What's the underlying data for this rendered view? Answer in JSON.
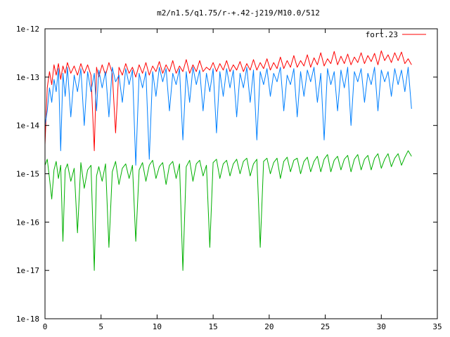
{
  "chart_data": {
    "type": "line",
    "title": "m2/n1.5/q1.75/r-+.42-j219/M10.0/512",
    "xlabel": "",
    "ylabel": "",
    "xlim": [
      0,
      35
    ],
    "ylim": [
      1e-18,
      1e-12
    ],
    "y_scale": "log",
    "grid": false,
    "legend_position": "top-right",
    "x_ticks": [
      0,
      5,
      10,
      15,
      20,
      25,
      30,
      35
    ],
    "x_tick_labels": [
      "0",
      "5",
      "10",
      "15",
      "20",
      "25",
      "30",
      "35"
    ],
    "y_ticks": [
      1e-18,
      1e-17,
      1e-16,
      1e-15,
      1e-14,
      1e-13,
      1e-12
    ],
    "y_tick_labels": [
      "1e-18",
      "1e-17",
      "1e-16",
      "1e-15",
      "1e-14",
      "1e-13",
      "1e-12"
    ],
    "series": [
      {
        "name": "fort.23",
        "color": "#ff0000",
        "x": [
          0.0,
          0.2,
          0.4,
          0.6,
          0.8,
          1.0,
          1.2,
          1.4,
          1.6,
          1.8,
          2.0,
          2.3,
          2.6,
          2.9,
          3.2,
          3.5,
          3.8,
          4.1,
          4.4,
          4.6,
          4.8,
          5.1,
          5.4,
          5.7,
          6.0,
          6.3,
          6.6,
          6.9,
          7.2,
          7.5,
          7.8,
          8.1,
          8.4,
          8.7,
          9.0,
          9.3,
          9.6,
          9.9,
          10.2,
          10.5,
          10.8,
          11.1,
          11.4,
          11.7,
          12.0,
          12.3,
          12.6,
          12.9,
          13.2,
          13.5,
          13.8,
          14.1,
          14.4,
          14.7,
          15.0,
          15.3,
          15.6,
          15.9,
          16.2,
          16.5,
          16.8,
          17.1,
          17.4,
          17.7,
          18.0,
          18.3,
          18.6,
          18.9,
          19.2,
          19.5,
          19.8,
          20.1,
          20.4,
          20.7,
          21.0,
          21.3,
          21.6,
          21.9,
          22.2,
          22.5,
          22.8,
          23.1,
          23.4,
          23.7,
          24.0,
          24.3,
          24.6,
          24.9,
          25.2,
          25.5,
          25.8,
          26.1,
          26.4,
          26.7,
          27.0,
          27.3,
          27.6,
          27.9,
          28.2,
          28.5,
          28.8,
          29.1,
          29.4,
          29.7,
          30.0,
          30.3,
          30.6,
          30.9,
          31.2,
          31.5,
          31.8,
          32.1,
          32.4,
          32.7
        ],
        "values": [
          4e-15,
          6e-14,
          1.3e-13,
          7e-14,
          1.8e-13,
          1.1e-13,
          1.9e-13,
          9e-14,
          1.7e-13,
          1.2e-13,
          2e-13,
          1.2e-13,
          1.7e-13,
          1.1e-13,
          1.9e-13,
          1.2e-13,
          1.8e-13,
          1.1e-13,
          3e-15,
          1.6e-13,
          1e-13,
          1.8e-13,
          1.1e-13,
          2e-13,
          1.2e-13,
          7e-15,
          1.6e-13,
          1.1e-13,
          1.9e-13,
          1.2e-13,
          1.6e-13,
          1e-13,
          1.8e-13,
          1.2e-13,
          2e-13,
          1.1e-13,
          1.7e-13,
          1.3e-13,
          2.1e-13,
          1.2e-13,
          1.8e-13,
          1.3e-13,
          2.2e-13,
          1.2e-13,
          1.7e-13,
          1.3e-13,
          2.3e-13,
          1.2e-13,
          1.8e-13,
          1.3e-13,
          2.2e-13,
          1.3e-13,
          1.6e-13,
          1.4e-13,
          2e-13,
          1.3e-13,
          1.9e-13,
          1.4e-13,
          2.2e-13,
          1.3e-13,
          1.8e-13,
          1.4e-13,
          2.1e-13,
          1.3e-13,
          1.9e-13,
          1.4e-13,
          2.3e-13,
          1.4e-13,
          2e-13,
          1.5e-13,
          2.4e-13,
          1.4e-13,
          2e-13,
          1.5e-13,
          2.6e-13,
          1.5e-13,
          2.2e-13,
          1.6e-13,
          2.8e-13,
          1.6e-13,
          2.2e-13,
          1.7e-13,
          2.9e-13,
          1.6e-13,
          2.5e-13,
          1.8e-13,
          3.2e-13,
          1.7e-13,
          2.4e-13,
          1.9e-13,
          3.4e-13,
          1.8e-13,
          2.7e-13,
          1.9e-13,
          3e-13,
          1.8e-13,
          2.6e-13,
          2e-13,
          3.2e-13,
          1.9e-13,
          2.8e-13,
          2.1e-13,
          3.1e-13,
          1.8e-13,
          3.5e-13,
          2.2e-13,
          2.9e-13,
          2e-13,
          3.2e-13,
          2.2e-13,
          3.3e-13,
          1.9e-13,
          2.4e-13,
          1.8e-13
        ]
      },
      {
        "color": "#0080ff",
        "x": [
          0.0,
          0.2,
          0.4,
          0.6,
          0.8,
          1.0,
          1.2,
          1.4,
          1.6,
          1.8,
          2.0,
          2.3,
          2.6,
          2.9,
          3.2,
          3.5,
          3.8,
          4.1,
          4.4,
          4.6,
          4.8,
          5.1,
          5.4,
          5.7,
          6.0,
          6.3,
          6.6,
          6.9,
          7.2,
          7.5,
          7.8,
          8.1,
          8.4,
          8.7,
          9.0,
          9.3,
          9.6,
          9.9,
          10.2,
          10.5,
          10.8,
          11.1,
          11.4,
          11.7,
          12.0,
          12.3,
          12.6,
          12.9,
          13.2,
          13.5,
          13.8,
          14.1,
          14.4,
          14.7,
          15.0,
          15.3,
          15.6,
          15.9,
          16.2,
          16.5,
          16.8,
          17.1,
          17.4,
          17.7,
          18.0,
          18.3,
          18.6,
          18.9,
          19.2,
          19.5,
          19.8,
          20.1,
          20.4,
          20.7,
          21.0,
          21.3,
          21.6,
          21.9,
          22.2,
          22.5,
          22.8,
          23.1,
          23.4,
          23.7,
          24.0,
          24.3,
          24.6,
          24.9,
          25.2,
          25.5,
          25.8,
          26.1,
          26.4,
          26.7,
          27.0,
          27.3,
          27.6,
          27.9,
          28.2,
          28.5,
          28.8,
          29.1,
          29.4,
          29.7,
          30.0,
          30.3,
          30.6,
          30.9,
          31.2,
          31.5,
          31.8,
          32.1,
          32.4,
          32.7
        ],
        "values": [
          1e-14,
          2e-14,
          6e-14,
          3e-14,
          9e-14,
          5e-14,
          1.5e-13,
          3e-15,
          1.2e-13,
          4e-14,
          1.6e-13,
          1.5e-14,
          1.1e-13,
          5e-14,
          1.5e-13,
          1e-14,
          1.3e-13,
          5e-14,
          1.2e-13,
          2e-14,
          1.4e-13,
          6e-14,
          1.3e-13,
          1.5e-14,
          1.6e-13,
          8e-14,
          1.1e-13,
          3e-14,
          1.5e-13,
          7e-14,
          1.4e-13,
          1.5e-15,
          1.2e-13,
          6e-14,
          1.3e-13,
          2e-15,
          1.3e-13,
          4e-14,
          1.6e-13,
          8e-14,
          1.5e-13,
          2e-14,
          1.2e-13,
          7e-14,
          1.5e-13,
          5e-15,
          1.3e-13,
          3e-14,
          1.6e-13,
          7e-14,
          1.4e-13,
          2e-14,
          1.2e-13,
          5e-14,
          1.5e-13,
          7e-15,
          1.3e-13,
          4e-14,
          1.5e-13,
          6e-14,
          1.4e-13,
          1.5e-14,
          1.2e-13,
          6e-14,
          1.6e-13,
          3e-14,
          1.4e-13,
          5e-15,
          1.3e-13,
          7e-14,
          1.5e-13,
          4e-14,
          1.2e-13,
          8e-14,
          1.6e-13,
          2e-14,
          1.1e-13,
          7e-14,
          1.5e-13,
          1.5e-14,
          1.3e-13,
          4e-14,
          1.4e-13,
          8e-14,
          1.6e-13,
          3e-14,
          1.2e-13,
          5e-15,
          1.5e-13,
          7e-14,
          1.3e-13,
          2e-14,
          1.4e-13,
          6e-14,
          1.6e-13,
          1e-14,
          1.3e-13,
          8e-14,
          1.5e-13,
          3e-14,
          1.2e-13,
          7e-14,
          1.6e-13,
          2e-14,
          1.4e-13,
          8e-14,
          1.3e-13,
          4e-14,
          1.5e-13,
          7e-14,
          1.4e-13,
          5e-14,
          1.6e-13,
          2.2e-14
        ]
      },
      {
        "color": "#00b000",
        "x": [
          0.0,
          0.2,
          0.4,
          0.6,
          0.8,
          1.0,
          1.2,
          1.4,
          1.6,
          1.8,
          2.0,
          2.3,
          2.6,
          2.9,
          3.2,
          3.5,
          3.8,
          4.1,
          4.4,
          4.6,
          4.8,
          5.1,
          5.4,
          5.7,
          6.0,
          6.3,
          6.6,
          6.9,
          7.2,
          7.5,
          7.8,
          8.1,
          8.4,
          8.7,
          9.0,
          9.3,
          9.6,
          9.9,
          10.2,
          10.5,
          10.8,
          11.1,
          11.4,
          11.7,
          12.0,
          12.3,
          12.6,
          12.9,
          13.2,
          13.5,
          13.8,
          14.1,
          14.4,
          14.7,
          15.0,
          15.3,
          15.6,
          15.9,
          16.2,
          16.5,
          16.8,
          17.1,
          17.4,
          17.7,
          18.0,
          18.3,
          18.6,
          18.9,
          19.2,
          19.5,
          19.8,
          20.1,
          20.4,
          20.7,
          21.0,
          21.3,
          21.6,
          21.9,
          22.2,
          22.5,
          22.8,
          23.1,
          23.4,
          23.7,
          24.0,
          24.3,
          24.6,
          24.9,
          25.2,
          25.5,
          25.8,
          26.1,
          26.4,
          26.7,
          27.0,
          27.3,
          27.6,
          27.9,
          28.2,
          28.5,
          28.8,
          29.1,
          29.4,
          29.7,
          30.0,
          30.3,
          30.6,
          30.9,
          31.2,
          31.5,
          31.8,
          32.1,
          32.4,
          32.7
        ],
        "values": [
          1.5e-15,
          2e-15,
          8e-16,
          3e-16,
          1.2e-15,
          1.8e-15,
          8e-16,
          1.5e-15,
          4e-17,
          1.2e-15,
          1.6e-15,
          7e-16,
          1.3e-15,
          6e-17,
          1.7e-15,
          5e-16,
          1.2e-15,
          1.5e-15,
          1e-17,
          9e-16,
          1.4e-15,
          7e-16,
          1.6e-15,
          3e-17,
          1.1e-15,
          1.8e-15,
          6e-16,
          1.3e-15,
          1.6e-15,
          8e-16,
          1.5e-15,
          4e-17,
          1.2e-15,
          1.7e-15,
          7e-16,
          1.5e-15,
          1.9e-15,
          8e-16,
          1.4e-15,
          1.7e-15,
          6e-16,
          1.5e-15,
          1.8e-15,
          8e-16,
          1.6e-15,
          1e-17,
          1.4e-15,
          1.9e-15,
          7e-16,
          1.6e-15,
          1.9e-15,
          9e-16,
          1.5e-15,
          3e-17,
          1.7e-15,
          2e-15,
          8e-16,
          1.6e-15,
          1.9e-15,
          9e-16,
          1.6e-15,
          2e-15,
          1e-15,
          1.8e-15,
          2.1e-15,
          9e-16,
          1.6e-15,
          2e-15,
          3e-17,
          1.8e-15,
          2.1e-15,
          1e-15,
          1.7e-15,
          2.1e-15,
          8e-16,
          1.8e-15,
          2.2e-15,
          1.1e-15,
          1.9e-15,
          2.1e-15,
          1e-15,
          1.8e-15,
          2.2e-15,
          1.1e-15,
          1.8e-15,
          2.3e-15,
          1.1e-15,
          2e-15,
          2.5e-15,
          1.1e-15,
          1.9e-15,
          2.3e-15,
          1.2e-15,
          2e-15,
          2.4e-15,
          1.1e-15,
          2e-15,
          2.5e-15,
          1.2e-15,
          2e-15,
          2.4e-15,
          1.2e-15,
          2.1e-15,
          2.6e-15,
          1.3e-15,
          2e-15,
          2.6e-15,
          1.4e-15,
          2.1e-15,
          2.6e-15,
          1.5e-15,
          2.2e-15,
          3e-15,
          2.3e-15
        ]
      }
    ]
  }
}
